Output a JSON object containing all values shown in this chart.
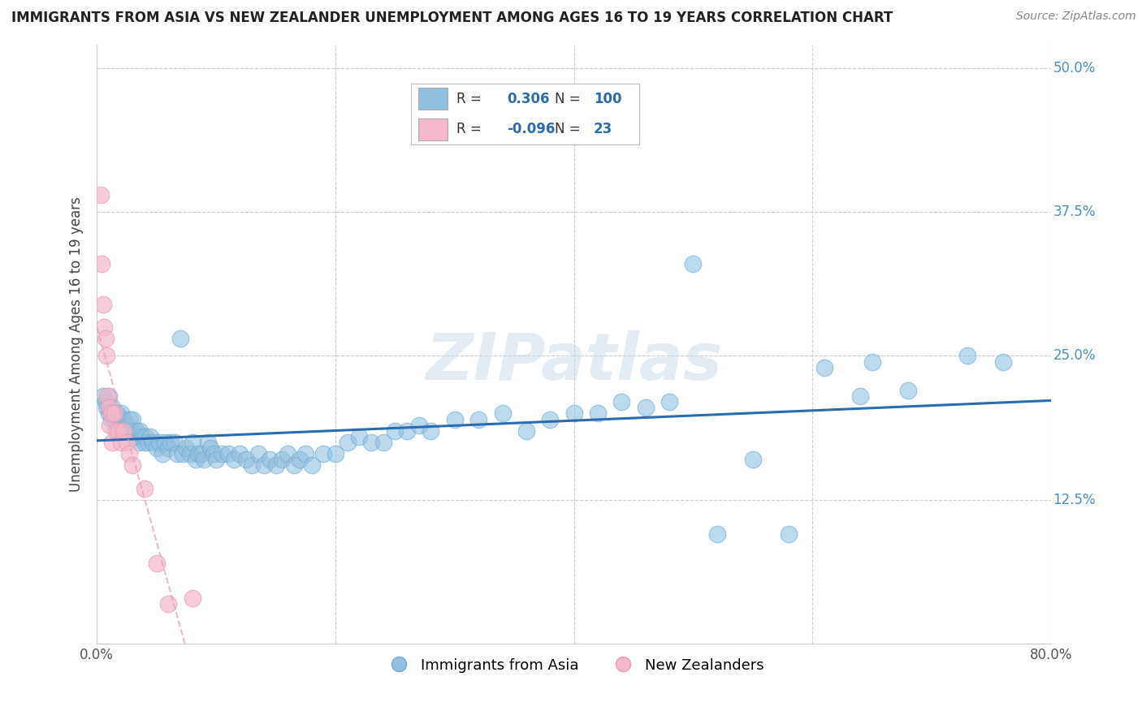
{
  "title": "IMMIGRANTS FROM ASIA VS NEW ZEALANDER UNEMPLOYMENT AMONG AGES 16 TO 19 YEARS CORRELATION CHART",
  "source": "Source: ZipAtlas.com",
  "ylabel": "Unemployment Among Ages 16 to 19 years",
  "xlim": [
    0.0,
    0.8
  ],
  "ylim": [
    0.0,
    0.52
  ],
  "xticks": [
    0.0,
    0.2,
    0.4,
    0.6,
    0.8
  ],
  "xtick_labels": [
    "0.0%",
    "",
    "",
    "",
    "80.0%"
  ],
  "yticks": [
    0.0,
    0.125,
    0.25,
    0.375,
    0.5
  ],
  "ytick_labels": [
    "",
    "12.5%",
    "25.0%",
    "37.5%",
    "50.0%"
  ],
  "r_asia": 0.306,
  "n_asia": 100,
  "r_nz": -0.096,
  "n_nz": 23,
  "blue_color": "#92c0e0",
  "blue_edge_color": "#6aaad4",
  "pink_color": "#f4b8ca",
  "pink_edge_color": "#e899b4",
  "blue_line_color": "#2b6cb0",
  "pink_line_color": "#e0aabe",
  "watermark": "ZIPatlas",
  "asia_x": [
    0.005,
    0.007,
    0.008,
    0.01,
    0.01,
    0.01,
    0.012,
    0.013,
    0.015,
    0.015,
    0.017,
    0.018,
    0.02,
    0.02,
    0.021,
    0.022,
    0.023,
    0.025,
    0.025,
    0.027,
    0.028,
    0.03,
    0.03,
    0.032,
    0.033,
    0.035,
    0.036,
    0.038,
    0.04,
    0.041,
    0.043,
    0.045,
    0.047,
    0.05,
    0.052,
    0.055,
    0.057,
    0.06,
    0.062,
    0.065,
    0.067,
    0.07,
    0.072,
    0.075,
    0.078,
    0.08,
    0.083,
    0.085,
    0.088,
    0.09,
    0.093,
    0.095,
    0.098,
    0.1,
    0.105,
    0.11,
    0.115,
    0.12,
    0.125,
    0.13,
    0.135,
    0.14,
    0.145,
    0.15,
    0.155,
    0.16,
    0.165,
    0.17,
    0.175,
    0.18,
    0.19,
    0.2,
    0.21,
    0.22,
    0.23,
    0.24,
    0.25,
    0.26,
    0.27,
    0.28,
    0.3,
    0.32,
    0.34,
    0.36,
    0.38,
    0.4,
    0.42,
    0.44,
    0.46,
    0.48,
    0.5,
    0.52,
    0.55,
    0.58,
    0.61,
    0.64,
    0.65,
    0.68,
    0.73,
    0.76
  ],
  "asia_y": [
    0.215,
    0.21,
    0.205,
    0.2,
    0.205,
    0.215,
    0.195,
    0.205,
    0.2,
    0.195,
    0.2,
    0.195,
    0.195,
    0.2,
    0.185,
    0.195,
    0.185,
    0.185,
    0.19,
    0.185,
    0.195,
    0.185,
    0.195,
    0.18,
    0.185,
    0.175,
    0.185,
    0.18,
    0.175,
    0.18,
    0.175,
    0.18,
    0.175,
    0.17,
    0.175,
    0.165,
    0.175,
    0.17,
    0.175,
    0.175,
    0.165,
    0.265,
    0.165,
    0.17,
    0.165,
    0.175,
    0.16,
    0.165,
    0.165,
    0.16,
    0.175,
    0.17,
    0.165,
    0.16,
    0.165,
    0.165,
    0.16,
    0.165,
    0.16,
    0.155,
    0.165,
    0.155,
    0.16,
    0.155,
    0.16,
    0.165,
    0.155,
    0.16,
    0.165,
    0.155,
    0.165,
    0.165,
    0.175,
    0.18,
    0.175,
    0.175,
    0.185,
    0.185,
    0.19,
    0.185,
    0.195,
    0.195,
    0.2,
    0.185,
    0.195,
    0.2,
    0.2,
    0.21,
    0.205,
    0.21,
    0.33,
    0.095,
    0.16,
    0.095,
    0.24,
    0.215,
    0.245,
    0.22,
    0.25,
    0.245
  ],
  "nz_x": [
    0.003,
    0.004,
    0.005,
    0.006,
    0.007,
    0.008,
    0.009,
    0.01,
    0.011,
    0.012,
    0.013,
    0.015,
    0.016,
    0.018,
    0.02,
    0.022,
    0.025,
    0.027,
    0.03,
    0.04,
    0.05,
    0.06,
    0.08
  ],
  "nz_y": [
    0.39,
    0.33,
    0.295,
    0.275,
    0.265,
    0.25,
    0.215,
    0.205,
    0.19,
    0.2,
    0.175,
    0.2,
    0.185,
    0.185,
    0.175,
    0.185,
    0.175,
    0.165,
    0.155,
    0.135,
    0.07,
    0.035,
    0.04
  ]
}
